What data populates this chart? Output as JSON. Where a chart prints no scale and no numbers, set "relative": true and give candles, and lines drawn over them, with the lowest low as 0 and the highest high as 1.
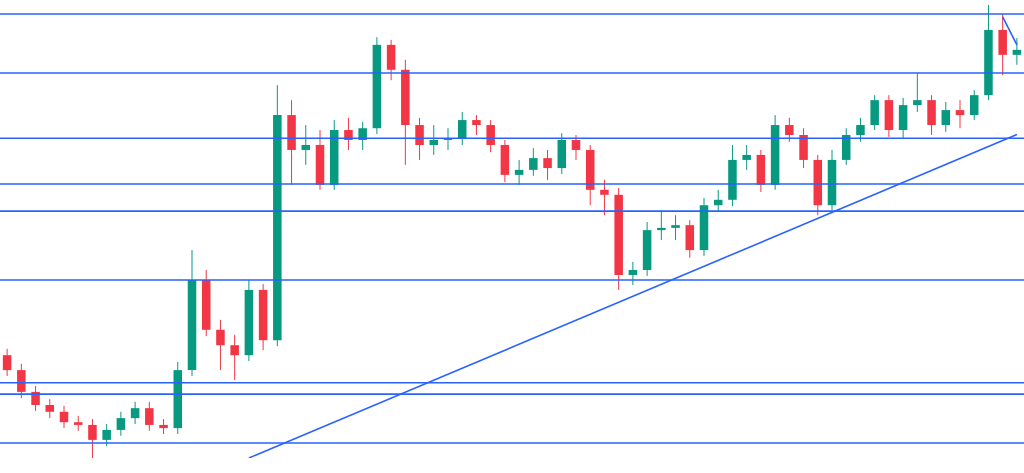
{
  "chart_data": {
    "type": "candlestick",
    "relative": true,
    "categories": [
      null,
      null,
      null,
      null,
      null,
      null,
      null,
      null,
      null,
      null,
      null,
      null,
      null,
      null,
      null,
      null,
      null,
      null,
      null,
      null,
      null,
      null,
      null,
      null,
      null,
      null,
      null,
      null,
      null,
      null,
      null,
      null,
      null,
      null,
      null,
      null,
      null,
      null,
      null,
      null,
      null,
      null,
      null,
      null,
      null,
      null,
      null,
      null,
      null,
      null,
      null,
      null,
      null,
      null,
      null,
      null,
      null,
      null,
      null,
      null,
      null,
      null,
      null,
      null,
      null,
      null,
      null,
      null,
      null,
      null,
      null,
      null
    ],
    "ohlc": [
      [
        0.227,
        0.241,
        0.181,
        0.194
      ],
      [
        0.194,
        0.208,
        0.132,
        0.146
      ],
      [
        0.146,
        0.159,
        0.104,
        0.117
      ],
      [
        0.117,
        0.13,
        0.088,
        0.102
      ],
      [
        0.102,
        0.115,
        0.066,
        0.079
      ],
      [
        0.079,
        0.093,
        0.06,
        0.073
      ],
      [
        0.073,
        0.086,
        0,
        0.04
      ],
      [
        0.04,
        0.075,
        0.026,
        0.062
      ],
      [
        0.062,
        0.102,
        0.049,
        0.088
      ],
      [
        0.088,
        0.124,
        0.075,
        0.11
      ],
      [
        0.11,
        0.124,
        0.06,
        0.073
      ],
      [
        0.073,
        0.086,
        0.053,
        0.066
      ],
      [
        0.066,
        0.212,
        0.053,
        0.194
      ],
      [
        0.194,
        0.459,
        0.181,
        0.393
      ],
      [
        0.393,
        0.415,
        0.269,
        0.283
      ],
      [
        0.283,
        0.305,
        0.194,
        0.249
      ],
      [
        0.249,
        0.272,
        0.172,
        0.227
      ],
      [
        0.227,
        0.393,
        0.214,
        0.371
      ],
      [
        0.371,
        0.384,
        0.238,
        0.26
      ],
      [
        0.26,
        0.823,
        0.247,
        0.757
      ],
      [
        0.757,
        0.79,
        0.603,
        0.68
      ],
      [
        0.68,
        0.735,
        0.647,
        0.691
      ],
      [
        0.691,
        0.724,
        0.592,
        0.603
      ],
      [
        0.603,
        0.746,
        0.592,
        0.724
      ],
      [
        0.724,
        0.751,
        0.68,
        0.702
      ],
      [
        0.702,
        0.742,
        0.68,
        0.728
      ],
      [
        0.728,
        0.929,
        0.715,
        0.912
      ],
      [
        0.912,
        0.923,
        0.834,
        0.857
      ],
      [
        0.857,
        0.879,
        0.647,
        0.735
      ],
      [
        0.735,
        0.751,
        0.658,
        0.691
      ],
      [
        0.691,
        0.735,
        0.669,
        0.702
      ],
      [
        0.702,
        0.728,
        0.68,
        0.706
      ],
      [
        0.706,
        0.764,
        0.691,
        0.746
      ],
      [
        0.746,
        0.757,
        0.713,
        0.735
      ],
      [
        0.735,
        0.746,
        0.675,
        0.691
      ],
      [
        0.691,
        0.702,
        0.609,
        0.625
      ],
      [
        0.625,
        0.658,
        0.603,
        0.636
      ],
      [
        0.636,
        0.684,
        0.623,
        0.662
      ],
      [
        0.662,
        0.68,
        0.614,
        0.64
      ],
      [
        0.64,
        0.717,
        0.627,
        0.702
      ],
      [
        0.702,
        0.713,
        0.658,
        0.68
      ],
      [
        0.68,
        0.691,
        0.558,
        0.592
      ],
      [
        0.592,
        0.614,
        0.536,
        0.581
      ],
      [
        0.581,
        0.596,
        0.371,
        0.404
      ],
      [
        0.404,
        0.433,
        0.382,
        0.415
      ],
      [
        0.415,
        0.521,
        0.402,
        0.503
      ],
      [
        0.503,
        0.547,
        0.481,
        0.508
      ],
      [
        0.508,
        0.536,
        0.481,
        0.514
      ],
      [
        0.514,
        0.525,
        0.442,
        0.459
      ],
      [
        0.459,
        0.574,
        0.446,
        0.558
      ],
      [
        0.558,
        0.592,
        0.543,
        0.57
      ],
      [
        0.57,
        0.691,
        0.556,
        0.658
      ],
      [
        0.658,
        0.691,
        0.636,
        0.669
      ],
      [
        0.669,
        0.68,
        0.587,
        0.603
      ],
      [
        0.603,
        0.757,
        0.592,
        0.735
      ],
      [
        0.735,
        0.751,
        0.698,
        0.713
      ],
      [
        0.713,
        0.728,
        0.64,
        0.658
      ],
      [
        0.658,
        0.669,
        0.536,
        0.558
      ],
      [
        0.558,
        0.68,
        0.547,
        0.658
      ],
      [
        0.658,
        0.728,
        0.647,
        0.713
      ],
      [
        0.713,
        0.751,
        0.698,
        0.735
      ],
      [
        0.735,
        0.801,
        0.724,
        0.79
      ],
      [
        0.79,
        0.801,
        0.709,
        0.724
      ],
      [
        0.724,
        0.795,
        0.706,
        0.779
      ],
      [
        0.779,
        0.85,
        0.764,
        0.79
      ],
      [
        0.79,
        0.801,
        0.713,
        0.735
      ],
      [
        0.735,
        0.786,
        0.72,
        0.768
      ],
      [
        0.768,
        0.79,
        0.728,
        0.757
      ],
      [
        0.757,
        0.812,
        0.746,
        0.801
      ],
      [
        0.801,
        1,
        0.79,
        0.945
      ],
      [
        0.945,
        0.98,
        0.845,
        0.89
      ],
      [
        0.89,
        0.927,
        0.868,
        0.901
      ]
    ],
    "colors": [
      "#f23645",
      "#f23645",
      "#f23645",
      "#f23645",
      "#f23645",
      "#f23645",
      "#f23645",
      "#089981",
      "#089981",
      "#089981",
      "#f23645",
      "#f23645",
      "#089981",
      "#089981",
      "#f23645",
      "#f23645",
      "#f23645",
      "#089981",
      "#f23645",
      "#089981",
      "#f23645",
      "#089981",
      "#f23645",
      "#089981",
      "#f23645",
      "#089981",
      "#089981",
      "#f23645",
      "#f23645",
      "#f23645",
      "#089981",
      "#089981",
      "#089981",
      "#f23645",
      "#f23645",
      "#f23645",
      "#089981",
      "#089981",
      "#f23645",
      "#089981",
      "#f23645",
      "#f23645",
      "#f23645",
      "#f23645",
      "#089981",
      "#089981",
      "#089981",
      "#089981",
      "#f23645",
      "#089981",
      "#089981",
      "#089981",
      "#089981",
      "#f23645",
      "#089981",
      "#f23645",
      "#f23645",
      "#f23645",
      "#089981",
      "#089981",
      "#089981",
      "#089981",
      "#f23645",
      "#089981",
      "#089981",
      "#f23645",
      "#089981",
      "#f23645",
      "#089981",
      "#089981",
      "#f23645",
      "#089981"
    ],
    "series": [
      {
        "type": "line",
        "values": [
          null,
          null,
          null,
          null,
          null,
          null,
          null,
          null,
          null,
          null,
          null,
          null,
          null,
          null,
          null,
          null,
          null,
          0,
          null,
          null,
          null,
          null,
          null,
          null,
          null,
          null,
          null,
          null,
          null,
          null,
          null,
          null,
          null,
          null,
          null,
          null,
          null,
          null,
          null,
          null,
          null,
          null,
          null,
          null,
          null,
          null,
          null,
          null,
          null,
          null,
          null,
          null,
          null,
          null,
          null,
          null,
          null,
          null,
          null,
          null,
          null,
          null,
          null,
          null,
          null,
          null,
          null,
          null,
          null,
          null,
          null,
          0.714
        ],
        "color": "#2962ff"
      },
      {
        "type": "line",
        "values": [
          null,
          null,
          null,
          null,
          null,
          null,
          null,
          null,
          null,
          null,
          null,
          null,
          null,
          null,
          null,
          null,
          null,
          null,
          null,
          null,
          null,
          null,
          null,
          null,
          null,
          null,
          null,
          null,
          null,
          null,
          null,
          null,
          null,
          null,
          null,
          null,
          null,
          null,
          null,
          null,
          null,
          null,
          null,
          null,
          null,
          null,
          null,
          null,
          null,
          null,
          null,
          null,
          null,
          null,
          null,
          null,
          null,
          null,
          null,
          null,
          null,
          null,
          null,
          null,
          null,
          null,
          null,
          null,
          null,
          null,
          0.974,
          0.912
        ],
        "color": "#2962ff"
      }
    ],
    "ref_lines": [
      {
        "axis": "y",
        "value": 0.98,
        "color": "#2962ff"
      },
      {
        "axis": "y",
        "value": 0.85,
        "color": "#2962ff"
      },
      {
        "axis": "y",
        "value": 0.706,
        "color": "#2962ff"
      },
      {
        "axis": "y",
        "value": 0.605,
        "color": "#2962ff"
      },
      {
        "axis": "y",
        "value": 0.545,
        "color": "#2962ff"
      },
      {
        "axis": "y",
        "value": 0.393,
        "color": "#2962ff"
      },
      {
        "axis": "y",
        "value": 0.166,
        "color": "#2962ff"
      },
      {
        "axis": "y",
        "value": 0.141,
        "color": "#2962ff"
      },
      {
        "axis": "y",
        "value": 0.033,
        "color": "#2962ff"
      }
    ]
  }
}
